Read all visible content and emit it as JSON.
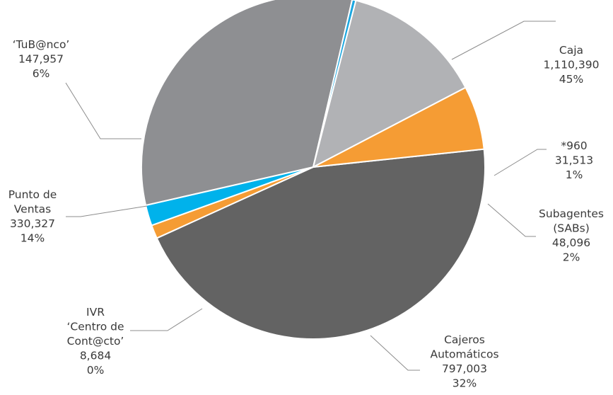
{
  "chart_data": {
    "type": "pie",
    "title": "",
    "slices": [
      {
        "label": "Caja",
        "label_lines": [
          "Caja"
        ],
        "value_text": "1,110,390",
        "value": 1110390,
        "percent_text": "45%",
        "color": "#636363"
      },
      {
        "label": "*960",
        "label_lines": [
          "*960"
        ],
        "value_text": "31,513",
        "value": 31513,
        "percent_text": "1%",
        "color": "#f59c34"
      },
      {
        "label": "Subagentes (SABs)",
        "label_lines": [
          "Subagentes",
          "(SABs)"
        ],
        "value_text": "48,096",
        "value": 48096,
        "percent_text": "2%",
        "color": "#00b2eb"
      },
      {
        "label": "Cajeros Automáticos",
        "label_lines": [
          "Cajeros",
          "Automáticos"
        ],
        "value_text": "797,003",
        "value": 797003,
        "percent_text": "32%",
        "color": "#8e8f92"
      },
      {
        "label": "IVR 'Centro de Cont@cto'",
        "label_lines": [
          "IVR",
          "‘Centro de",
          "Cont@cto’"
        ],
        "value_text": "8,684",
        "value": 8684,
        "percent_text": "0%",
        "color": "#1ba7e0"
      },
      {
        "label": "Punto de Ventas",
        "label_lines": [
          "Punto de",
          "Ventas"
        ],
        "value_text": "330,327",
        "value": 330327,
        "percent_text": "14%",
        "color": "#b1b2b5"
      },
      {
        "label": "'TuB@nco'",
        "label_lines": [
          "‘TuB@nco’"
        ],
        "value_text": "147,957",
        "value": 147957,
        "percent_text": "6%",
        "color": "#f59c34"
      }
    ]
  }
}
